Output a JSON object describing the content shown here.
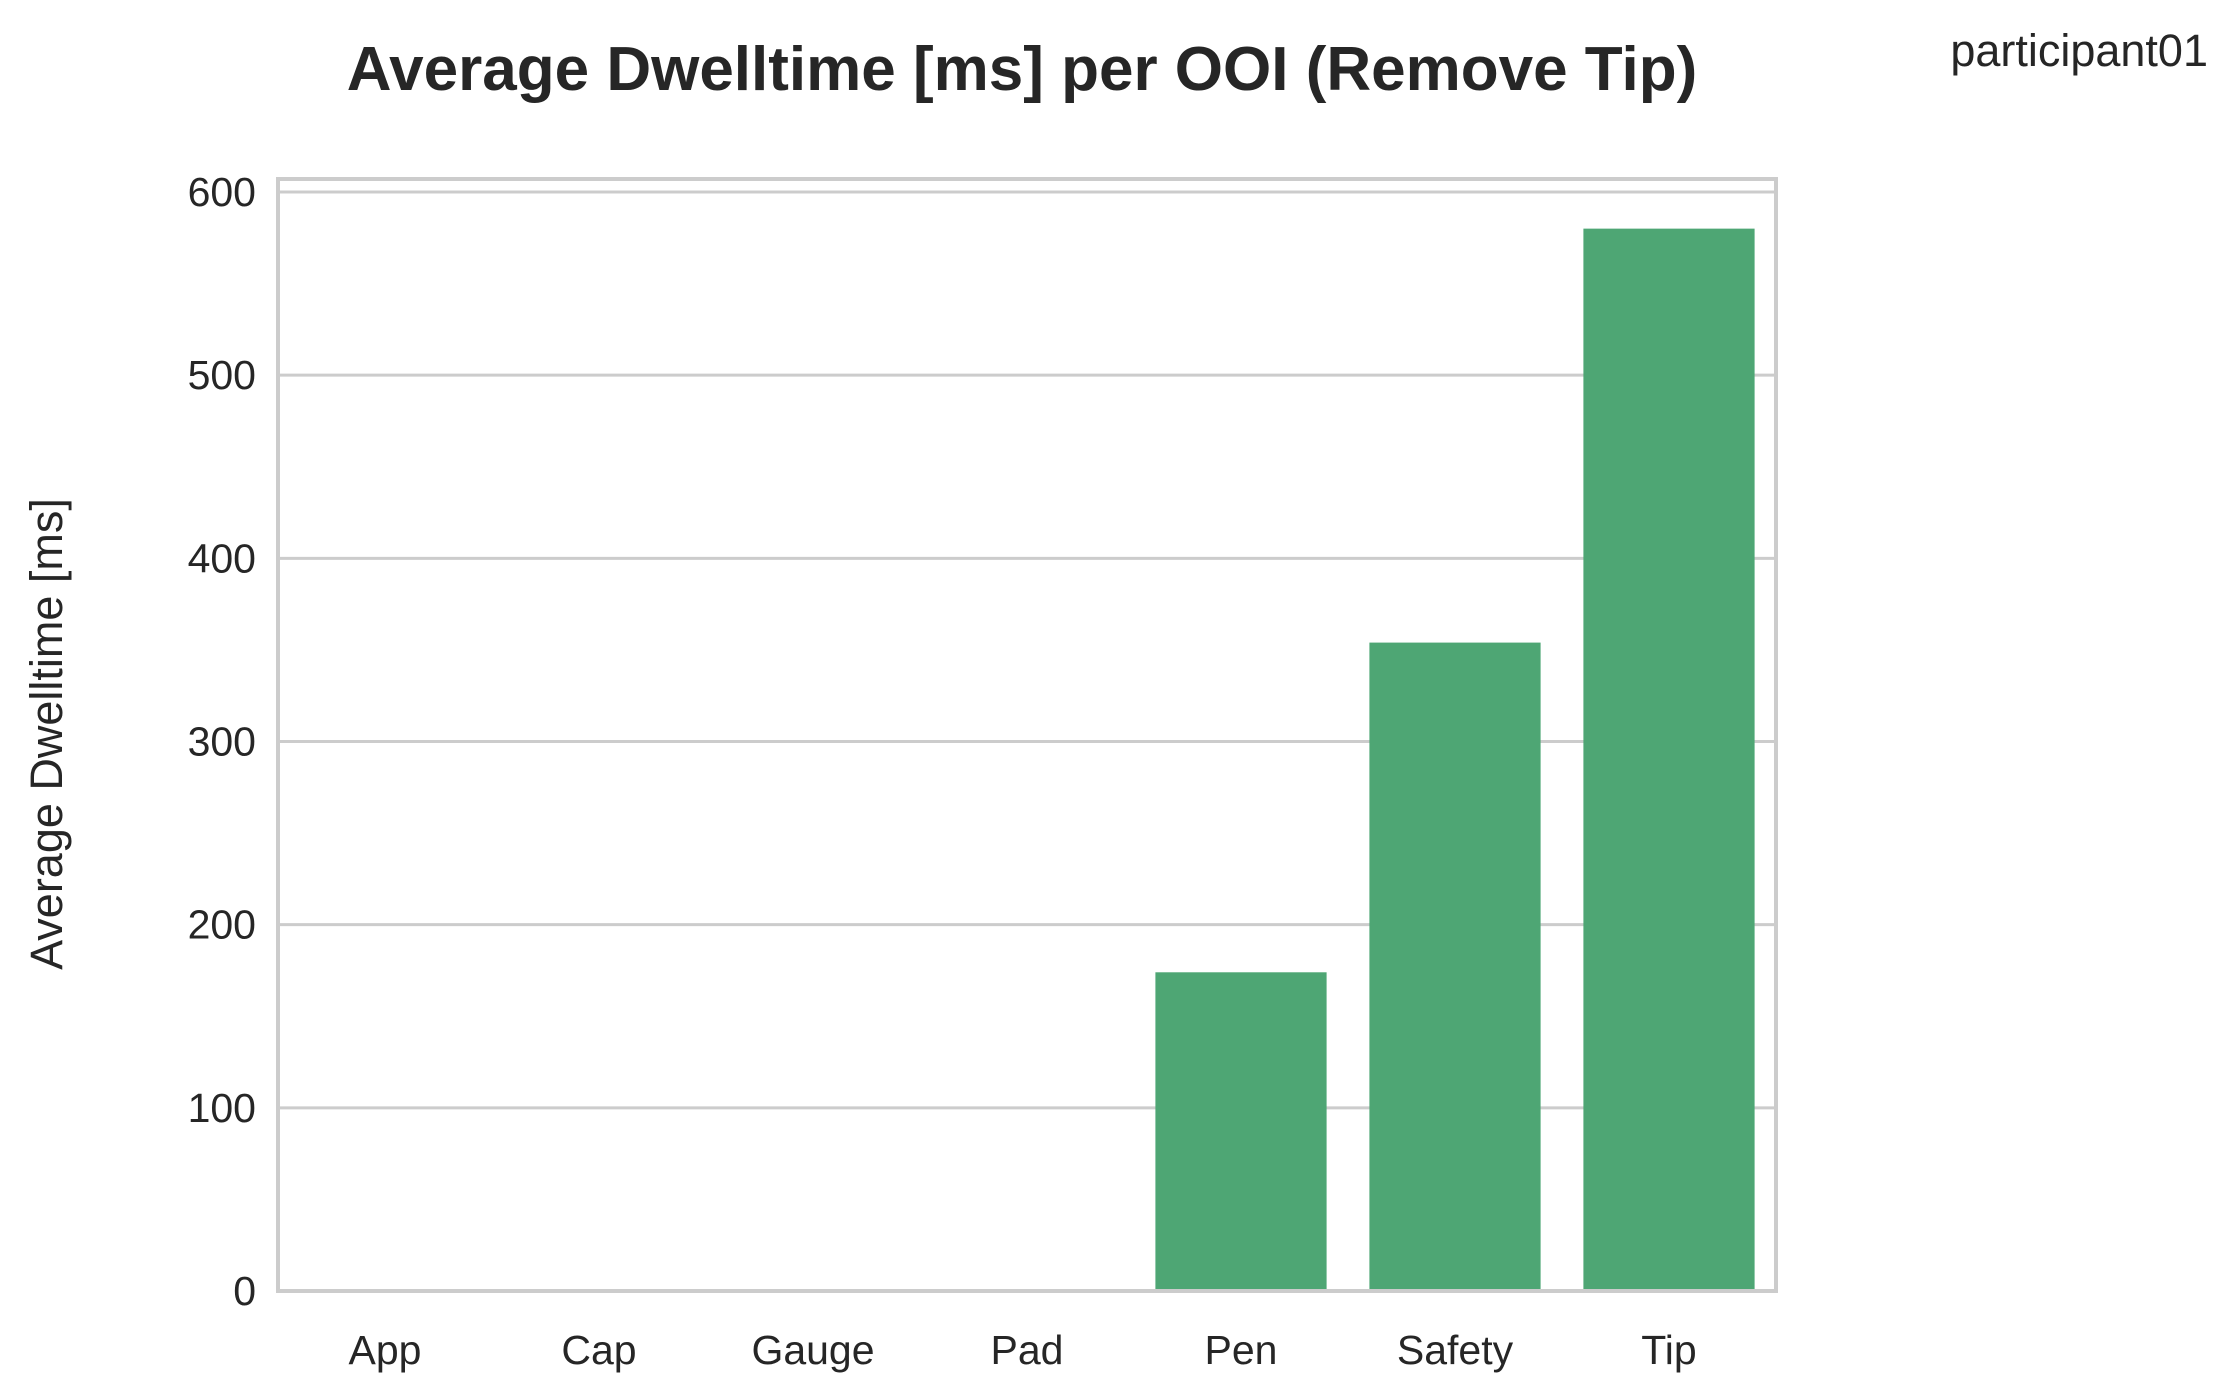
{
  "participant_label": "participant01",
  "chart_data": {
    "type": "bar",
    "title": "Average Dwelltime [ms] per OOI (Remove Tip)",
    "xlabel": "",
    "ylabel": "Average Dwelltime [ms]",
    "categories": [
      "App",
      "Cap",
      "Gauge",
      "Pad",
      "Pen",
      "Safety",
      "Tip"
    ],
    "values": [
      0,
      0,
      0,
      0,
      174,
      354,
      580
    ],
    "ylim": [
      0,
      600
    ],
    "yticks": [
      0,
      100,
      200,
      300,
      400,
      500,
      600
    ],
    "grid": true,
    "bar_color": "#4ea674",
    "grid_color": "#cccccc"
  }
}
